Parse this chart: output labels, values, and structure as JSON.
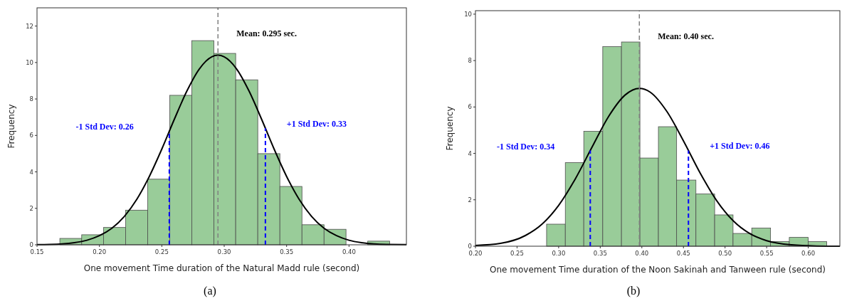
{
  "chart_data": [
    {
      "type": "histogram",
      "xlabel": "One movement Time duration of the Natural Madd rule (second)",
      "ylabel": "Frequency",
      "annotations": [
        "(a)"
      ],
      "xlim": [
        0.15,
        0.446
      ],
      "ylim": [
        0,
        13
      ],
      "xticks": [
        0.15,
        {
          "value": 0.2,
          "label": "0.20"
        },
        0.25,
        {
          "value": 0.3,
          "label": "0.30"
        },
        0.35,
        {
          "value": 0.4,
          "label": "0.40"
        }
      ],
      "yticks": [
        0,
        2,
        4,
        6,
        8,
        10,
        12
      ],
      "grid": false,
      "series": [
        {
          "type": "histogram",
          "color": "#99cc99",
          "bins": [
            0.1683,
            0.1858,
            0.2033,
            0.221,
            0.2387,
            0.2563,
            0.274,
            0.2917,
            0.3092,
            0.3269,
            0.3446,
            0.3623,
            0.38,
            0.3976,
            0.415,
            0.4326
          ],
          "values": [
            0.35,
            0.55,
            0.95,
            1.9,
            3.6,
            8.2,
            11.2,
            10.5,
            9.05,
            5.0,
            3.2,
            1.1,
            0.85,
            null,
            0.2
          ]
        },
        {
          "type": "line",
          "color": "#000000",
          "x": [
            0.15,
            0.16,
            0.17,
            0.18,
            0.19,
            0.2,
            0.21,
            0.22,
            0.23,
            0.24,
            0.25,
            0.26,
            0.27,
            0.28,
            0.29,
            0.295,
            0.3,
            0.31,
            0.32,
            0.33,
            0.34,
            0.35,
            0.36,
            0.37,
            0.38,
            0.39,
            0.4,
            0.41,
            0.42,
            0.43,
            0.446
          ],
          "values": [
            0.01,
            0.02,
            0.05,
            0.12,
            0.25,
            0.5,
            0.91,
            1.56,
            2.5,
            3.75,
            5.25,
            6.88,
            8.42,
            9.64,
            10.31,
            10.4,
            10.31,
            9.64,
            8.42,
            6.88,
            5.25,
            3.75,
            2.5,
            1.56,
            0.91,
            0.5,
            0.25,
            0.12,
            0.05,
            0.02,
            0.01
          ]
        }
      ],
      "ref_lines": [
        {
          "axis": "x",
          "value": 0.295,
          "label": "Mean: 0.295 sec.",
          "color": "#808080",
          "line_style": "dashed"
        },
        {
          "axis": "x",
          "value": 0.256,
          "label": "-1 Std Dev: 0.26",
          "color": "#0000ff",
          "line_style": "dashed"
        },
        {
          "axis": "x",
          "value": 0.333,
          "label": "+1 Std Dev: 0.33",
          "color": "#0000ff",
          "line_style": "dashed"
        }
      ]
    },
    {
      "type": "histogram",
      "xlabel": "One movement Time duration of the Noon Sakinah and Tanween rule (second)",
      "ylabel": "Frequency",
      "annotations": [
        "(b)"
      ],
      "xlim": [
        0.2,
        0.638
      ],
      "ylim": [
        0,
        10.15
      ],
      "xticks": [
        {
          "value": 0.2,
          "label": "0.20"
        },
        0.25,
        {
          "value": 0.3,
          "label": "0.30"
        },
        0.35,
        {
          "value": 0.4,
          "label": "0.40"
        },
        0.45,
        {
          "value": 0.5,
          "label": "0.50"
        },
        0.55,
        {
          "value": 0.6,
          "label": "0.60"
        }
      ],
      "yticks": [
        0,
        2,
        4,
        6,
        8,
        10
      ],
      "grid": false,
      "series": [
        {
          "type": "histogram",
          "color": "#99cc99",
          "bins": [
            0.2855,
            0.308,
            0.3302,
            0.353,
            0.3755,
            0.3977,
            0.4199,
            0.4418,
            0.465,
            0.4875,
            0.5096,
            0.5321,
            0.5547,
            0.5772,
            0.6,
            0.6222
          ],
          "values": [
            0.95,
            3.6,
            4.95,
            8.6,
            8.8,
            3.8,
            5.15,
            2.85,
            2.25,
            1.35,
            0.55,
            0.78,
            0.2,
            0.38,
            0.2
          ]
        },
        {
          "type": "line",
          "color": "#000000",
          "x": [
            0.2,
            0.23,
            0.26,
            0.28,
            0.3,
            0.32,
            0.34,
            0.36,
            0.38,
            0.397,
            0.41,
            0.43,
            0.45,
            0.47,
            0.49,
            0.51,
            0.53,
            0.55,
            0.58,
            0.61,
            0.638
          ],
          "values": [
            0.03,
            0.12,
            0.46,
            0.95,
            1.76,
            2.9,
            4.26,
            5.59,
            6.52,
            6.8,
            6.64,
            5.81,
            4.54,
            3.16,
            1.96,
            1.09,
            0.54,
            0.24,
            0.06,
            0.01,
            0.0
          ]
        }
      ],
      "ref_lines": [
        {
          "axis": "x",
          "value": 0.397,
          "label": "Mean: 0.40 sec.",
          "color": "#808080",
          "line_style": "dashed"
        },
        {
          "axis": "x",
          "value": 0.338,
          "label": "-1 Std Dev: 0.34",
          "color": "#0000ff",
          "line_style": "dashed"
        },
        {
          "axis": "x",
          "value": 0.456,
          "label": "+1 Std Dev: 0.46",
          "color": "#0000ff",
          "line_style": "dashed"
        }
      ]
    }
  ]
}
